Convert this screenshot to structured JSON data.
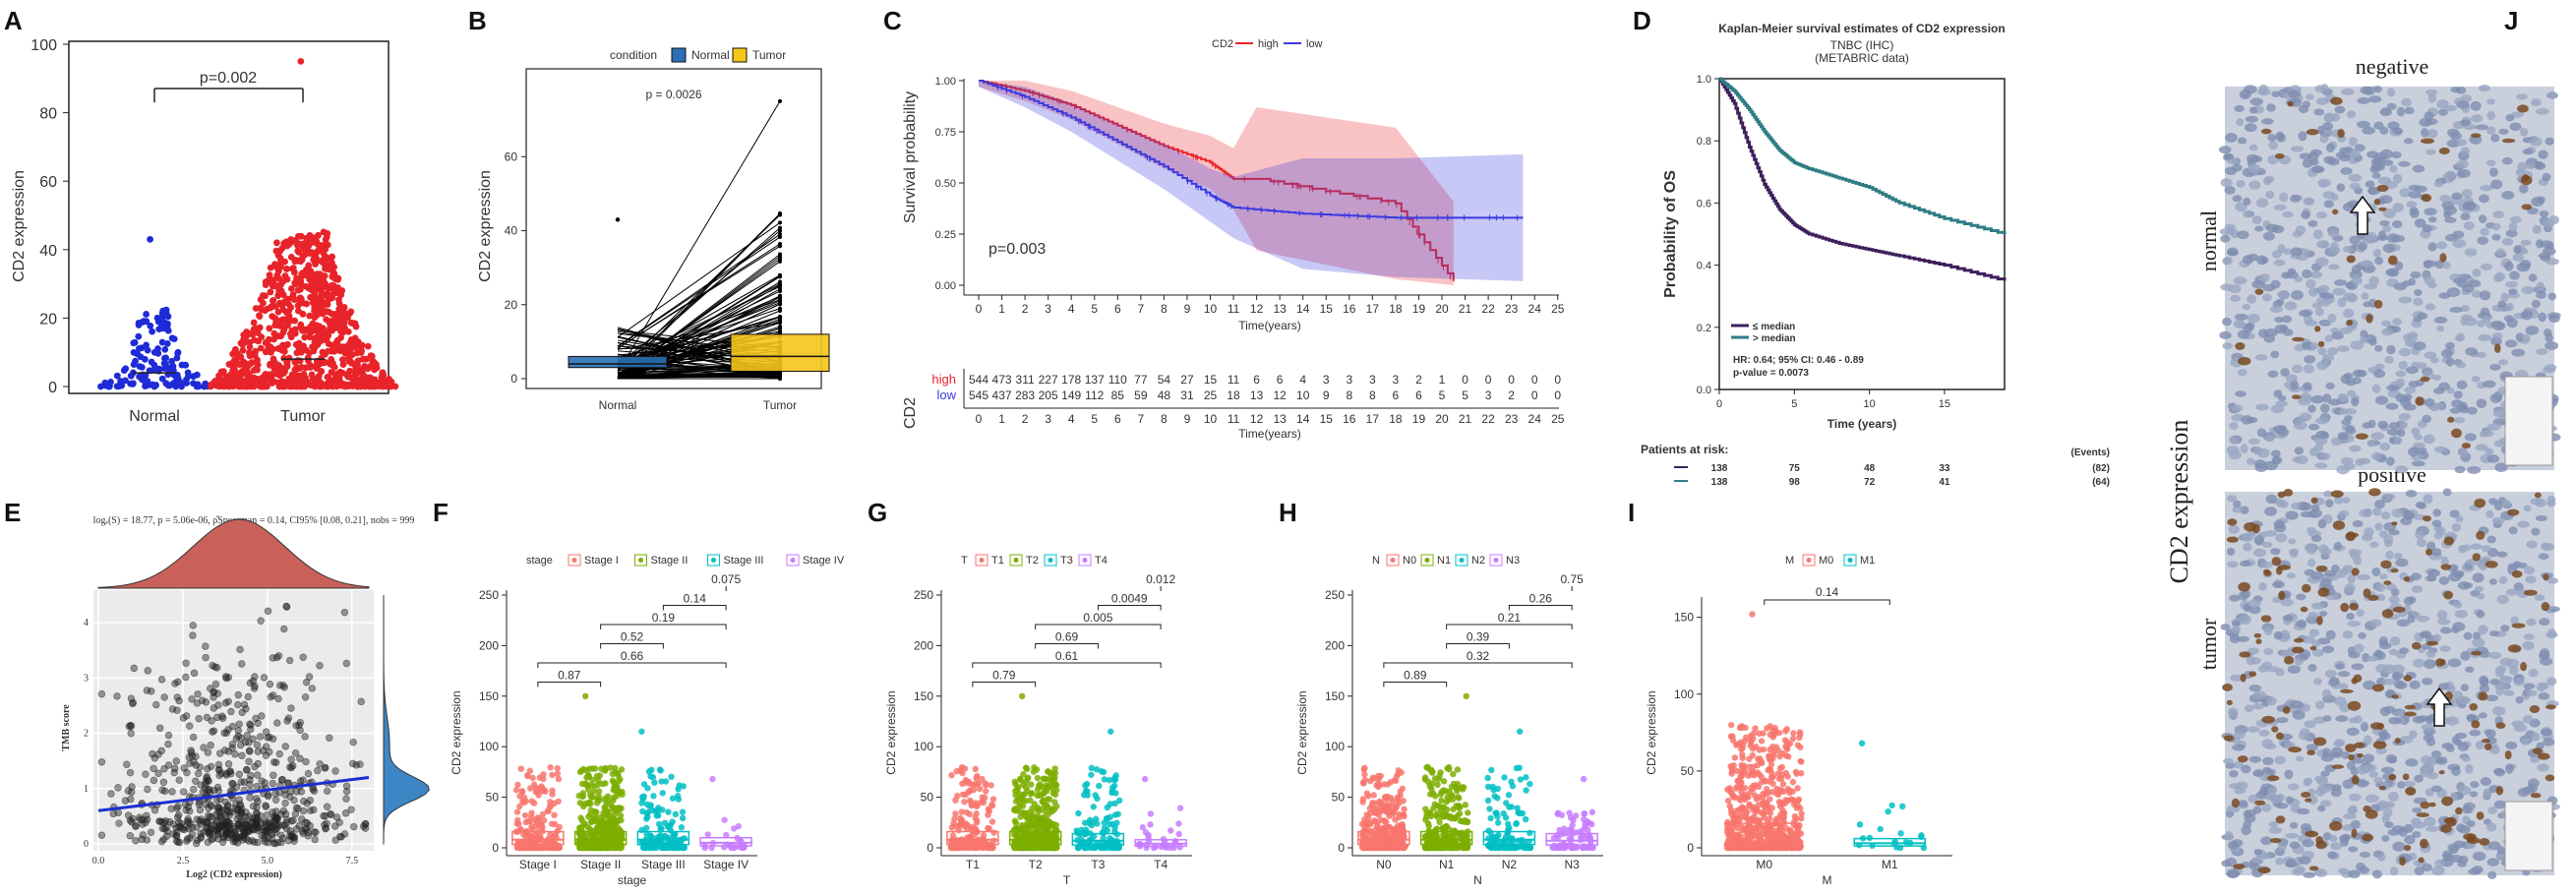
{
  "panels": {
    "A": {
      "label": "A",
      "ylabel": "CD2 expression",
      "pval": "p=0.002",
      "groups": [
        "Normal",
        "Tumor"
      ],
      "yticks": [
        0,
        20,
        40,
        60,
        80,
        100
      ]
    },
    "B": {
      "label": "B",
      "legend_title": "condition",
      "legend": [
        "Normal",
        "Tumor"
      ],
      "ylabel": "CD2 expression",
      "pval": "p = 0.0026",
      "groups": [
        "Normal",
        "Tumor"
      ],
      "yticks": [
        0,
        20,
        40,
        60
      ]
    },
    "C": {
      "label": "C",
      "legend_title": "CD2",
      "legend": [
        "high",
        "low"
      ],
      "ylabel": "Survival probability",
      "xlabel": "Time(years)",
      "xlabel2": "Time(years)",
      "pval": "p=0.003",
      "yticks": [
        "0.00",
        "0.25",
        "0.50",
        "0.75",
        "1.00"
      ],
      "xticks": [
        0,
        1,
        2,
        3,
        4,
        5,
        6,
        7,
        8,
        9,
        10,
        11,
        12,
        13,
        14,
        15,
        16,
        17,
        18,
        19,
        20,
        21,
        22,
        23,
        24,
        25
      ],
      "risk_title": "CD2",
      "risk_rows": [
        {
          "name": "high",
          "values": [
            544,
            473,
            311,
            227,
            178,
            137,
            110,
            77,
            54,
            27,
            15,
            11,
            6,
            6,
            4,
            3,
            3,
            3,
            3,
            2,
            1,
            0,
            0,
            0,
            0,
            0
          ]
        },
        {
          "name": "low",
          "values": [
            545,
            437,
            283,
            205,
            149,
            112,
            85,
            59,
            48,
            31,
            25,
            18,
            13,
            12,
            10,
            9,
            8,
            8,
            6,
            6,
            5,
            5,
            3,
            2,
            0,
            0
          ]
        }
      ]
    },
    "D": {
      "label": "D",
      "title": "Kaplan-Meier survival estimates of CD2 expression",
      "subtitle": "TNBC (IHC)",
      "subtitle2": "(METABRIC data)",
      "ylabel": "Probability of OS",
      "xlabel": "Time (years)",
      "yticks": [
        "0.0",
        "0.2",
        "0.4",
        "0.6",
        "0.8",
        "1.0"
      ],
      "xticks": [
        0,
        5,
        10,
        15
      ],
      "legend": [
        "≤ median",
        "> median"
      ],
      "stats": [
        "HR: 0.64; 95% CI: 0.46 - 0.89",
        "p-value = 0.0073"
      ],
      "risk_title": "Patients at risk:",
      "events_title": "(Events)",
      "risk_rows": [
        {
          "values": [
            138,
            75,
            48,
            33
          ],
          "events": "(82)"
        },
        {
          "values": [
            138,
            98,
            72,
            41
          ],
          "events": "(64)"
        }
      ]
    },
    "E": {
      "label": "E",
      "stat_line": "logₑ(S) = 18.77, p = 5.06e-06, ρ̂Spearman = 0.14, CI95% [0.08, 0.21], nobs = 999",
      "ylabel": "TMB score",
      "xlabel": "Log2 (CD2 expression)",
      "xticks": [
        "0.0",
        "2.5",
        "5.0",
        "7.5"
      ],
      "yticks": [
        "0",
        "1",
        "2",
        "3",
        "4"
      ]
    },
    "F": {
      "label": "F",
      "legend_title": "stage",
      "legend": [
        "Stage I",
        "Stage II",
        "Stage III",
        "Stage IV"
      ],
      "ylabel": "CD2 expression",
      "xlabel": "stage",
      "yticks": [
        0,
        50,
        100,
        150,
        200,
        250
      ],
      "pvals": [
        "0.87",
        "0.66",
        "0.52",
        "0.19",
        "0.14",
        "0.075"
      ]
    },
    "G": {
      "label": "G",
      "legend_title": "T",
      "legend": [
        "T1",
        "T2",
        "T3",
        "T4"
      ],
      "ylabel": "CD2 expression",
      "xlabel": "T",
      "yticks": [
        0,
        50,
        100,
        150,
        200,
        250
      ],
      "pvals": [
        "0.79",
        "0.61",
        "0.69",
        "0.005",
        "0.0049",
        "0.012"
      ]
    },
    "H": {
      "label": "H",
      "legend_title": "N",
      "legend": [
        "N0",
        "N1",
        "N2",
        "N3"
      ],
      "ylabel": "CD2 expression",
      "xlabel": "N",
      "yticks": [
        0,
        50,
        100,
        150,
        200,
        250
      ],
      "pvals": [
        "0.89",
        "0.32",
        "0.39",
        "0.21",
        "0.26",
        "0.75"
      ]
    },
    "I": {
      "label": "I",
      "legend_title": "M",
      "legend": [
        "M0",
        "M1"
      ],
      "ylabel": "CD2 expression",
      "xlabel": "M",
      "yticks": [
        0,
        50,
        100,
        150
      ],
      "pvals": [
        "0.14"
      ]
    },
    "J": {
      "label": "J",
      "negative": "negative",
      "positive": "positive",
      "normal": "normal",
      "tumor": "tumor",
      "side": "CD2 expression"
    }
  },
  "colors": {
    "blue": "#1f2bd6",
    "red": "#e8242a",
    "normal_box": "#2a6fb5",
    "tumor_box": "#f5c518",
    "km_high": "#e8242a",
    "km_low": "#3a3ae0",
    "d_low": "#3d1f5c",
    "d_high": "#2e7d84",
    "stage1": "#f8766d",
    "stage2": "#7cae00",
    "stage3": "#00bfc4",
    "stage4": "#c77cff"
  },
  "chart_data": [
    {
      "type": "scatter",
      "panel": "A",
      "title": "",
      "ylabel": "CD2 expression",
      "categories": [
        "Normal",
        "Tumor"
      ],
      "ylim": [
        0,
        100
      ],
      "annotations": [
        "p=0.002"
      ],
      "series": [
        {
          "name": "Normal",
          "median": 4,
          "max": 43
        },
        {
          "name": "Tumor",
          "median": 8,
          "max": 95
        }
      ]
    },
    {
      "type": "line",
      "panel": "B",
      "title": "",
      "ylabel": "CD2 expression",
      "categories": [
        "Normal",
        "Tumor"
      ],
      "ylim": [
        0,
        80
      ],
      "annotations": [
        "p = 0.0026"
      ],
      "series": [
        {
          "name": "Normal",
          "q1": 3,
          "median": 4,
          "q3": 6
        },
        {
          "name": "Tumor",
          "q1": 2,
          "median": 6,
          "q3": 12
        }
      ]
    },
    {
      "type": "line",
      "panel": "C",
      "ylabel": "Survival probability",
      "xlabel": "Time(years)",
      "xlim": [
        0,
        25
      ],
      "ylim": [
        0,
        1
      ],
      "series": [
        {
          "name": "high",
          "x": [
            0,
            2,
            4,
            6,
            8,
            10,
            11,
            12,
            18,
            20.5
          ],
          "y": [
            1,
            0.95,
            0.88,
            0.78,
            0.68,
            0.6,
            0.52,
            0.52,
            0.4,
            0.02
          ]
        },
        {
          "name": "low",
          "x": [
            0,
            2,
            4,
            6,
            8,
            10,
            11,
            14,
            18,
            23.5
          ],
          "y": [
            1,
            0.92,
            0.82,
            0.7,
            0.58,
            0.44,
            0.38,
            0.35,
            0.33,
            0.33
          ]
        }
      ]
    },
    {
      "type": "line",
      "panel": "D",
      "ylabel": "Probability of OS",
      "xlabel": "Time (years)",
      "xlim": [
        0,
        19
      ],
      "ylim": [
        0,
        1
      ],
      "series": [
        {
          "name": "≤ median",
          "x": [
            0,
            1,
            2,
            3,
            4,
            5,
            6,
            8,
            10,
            12,
            15,
            19
          ],
          "y": [
            1,
            0.92,
            0.78,
            0.66,
            0.58,
            0.53,
            0.5,
            0.47,
            0.45,
            0.43,
            0.4,
            0.35
          ]
        },
        {
          "name": "> median",
          "x": [
            0,
            1,
            2,
            3,
            4,
            5,
            6,
            8,
            10,
            12,
            15,
            19
          ],
          "y": [
            1,
            0.96,
            0.9,
            0.83,
            0.77,
            0.73,
            0.71,
            0.68,
            0.65,
            0.6,
            0.55,
            0.5
          ]
        }
      ]
    },
    {
      "type": "scatter",
      "panel": "E",
      "xlabel": "Log2 (CD2 expression)",
      "ylabel": "TMB score",
      "xlim": [
        0,
        8
      ],
      "ylim": [
        0,
        4.5
      ],
      "fit": {
        "x": [
          0,
          8
        ],
        "y": [
          0.6,
          1.2
        ]
      }
    },
    {
      "type": "bar",
      "panel": "F",
      "categories": [
        "Stage I",
        "Stage II",
        "Stage III",
        "Stage IV"
      ],
      "values": [
        8,
        8,
        8,
        5
      ],
      "ylim": [
        0,
        250
      ],
      "ylabel": "CD2 expression"
    },
    {
      "type": "bar",
      "panel": "G",
      "categories": [
        "T1",
        "T2",
        "T3",
        "T4"
      ],
      "values": [
        8,
        8,
        7,
        4
      ],
      "ylim": [
        0,
        250
      ],
      "ylabel": "CD2 expression"
    },
    {
      "type": "bar",
      "panel": "H",
      "categories": [
        "N0",
        "N1",
        "N2",
        "N3"
      ],
      "values": [
        8,
        8,
        8,
        7
      ],
      "ylim": [
        0,
        250
      ],
      "ylabel": "CD2 expression"
    },
    {
      "type": "bar",
      "panel": "I",
      "categories": [
        "M0",
        "M1"
      ],
      "values": [
        8,
        3
      ],
      "ylim": [
        0,
        160
      ],
      "ylabel": "CD2 expression"
    }
  ]
}
